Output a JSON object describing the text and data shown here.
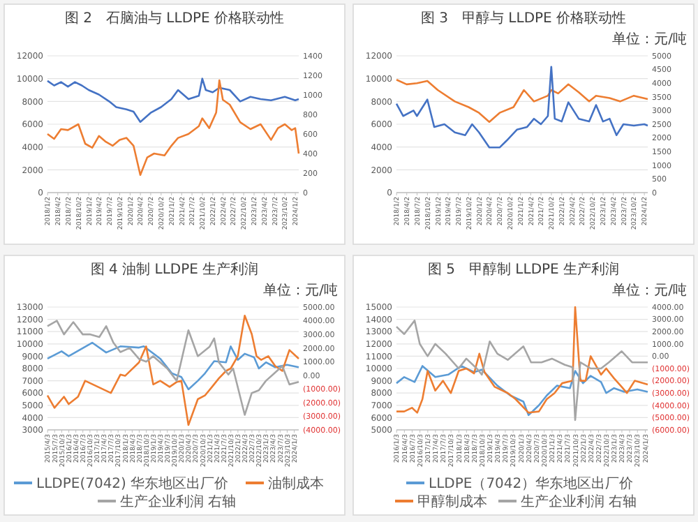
{
  "chart_data": [
    {
      "type": "line",
      "title": "图 2　石脑油与 LLDPE 价格联动性",
      "grid": "y",
      "legend": false,
      "xlim": [
        "2018-01-01",
        "2024-02-01"
      ],
      "xticks": [
        {
          "value": "2018-01-02",
          "label": "2018/1/2"
        },
        {
          "value": "2018-04-02",
          "label": "2018/4/2"
        },
        {
          "value": "2018-07-02",
          "label": "2018/7/2"
        },
        {
          "value": "2018-10-02",
          "label": "2018/10/2"
        },
        {
          "value": "2019-01-02",
          "label": "2019/1/2"
        },
        {
          "value": "2019-04-02",
          "label": "2019/4/2"
        },
        {
          "value": "2019-07-02",
          "label": "2019/7/2"
        },
        {
          "value": "2019-10-02",
          "label": "2019/10/2"
        },
        {
          "value": "2020-01-02",
          "label": "2020/1/2"
        },
        {
          "value": "2020-04-02",
          "label": "2020/4/2"
        },
        {
          "value": "2020-07-02",
          "label": "2020/7/2"
        },
        {
          "value": "2020-10-02",
          "label": "2020/10/2"
        },
        {
          "value": "2021-01-02",
          "label": "2021/1/2"
        },
        {
          "value": "2021-04-02",
          "label": "2021/4/2"
        },
        {
          "value": "2021-07-02",
          "label": "2021/7/2"
        },
        {
          "value": "2021-10-02",
          "label": "2021/10/2"
        },
        {
          "value": "2022-01-02",
          "label": "2022/1/2"
        },
        {
          "value": "2022-04-02",
          "label": "2022/4/2"
        },
        {
          "value": "2022-07-02",
          "label": "2022/7/2"
        },
        {
          "value": "2022-10-02",
          "label": "2022/10/2"
        },
        {
          "value": "2023-01-02",
          "label": "2023/1/2"
        },
        {
          "value": "2023-04-02",
          "label": "2023/4/2"
        },
        {
          "value": "2023-07-02",
          "label": "2023/7/2"
        },
        {
          "value": "2023-10-02",
          "label": "2023/10/2"
        },
        {
          "value": "2024-01-02",
          "label": "2024/1/2"
        }
      ],
      "ylim": [
        0,
        12000
      ],
      "yticks": [
        0,
        2000,
        4000,
        6000,
        8000,
        10000,
        12000
      ],
      "y2lim": [
        0,
        1400
      ],
      "y2ticks": [
        0,
        200,
        400,
        600,
        800,
        1000,
        1200,
        1400
      ],
      "series": [
        {
          "color": "#4472c4",
          "x": [
            "2018-01",
            "2018-03",
            "2018-05",
            "2018-07",
            "2018-09",
            "2018-11",
            "2019-01",
            "2019-04",
            "2019-07",
            "2019-09",
            "2019-12",
            "2020-02",
            "2020-04",
            "2020-07",
            "2020-10",
            "2021-01",
            "2021-03",
            "2021-06",
            "2021-09",
            "2021-10",
            "2021-11",
            "2022-01",
            "2022-03",
            "2022-06",
            "2022-09",
            "2022-12",
            "2023-03",
            "2023-06",
            "2023-10",
            "2024-01",
            "2024-02"
          ],
          "values": [
            9800,
            9400,
            9700,
            9300,
            9700,
            9400,
            9000,
            8600,
            8000,
            7500,
            7300,
            7100,
            6200,
            7000,
            7500,
            8200,
            9000,
            8200,
            8500,
            10000,
            9000,
            8800,
            9200,
            9000,
            8000,
            8400,
            8200,
            8100,
            8400,
            8100,
            8200
          ]
        },
        {
          "color": "#ed7d31",
          "axis": "y2",
          "x": [
            "2018-01",
            "2018-03",
            "2018-05",
            "2018-07",
            "2018-10",
            "2018-12",
            "2019-02",
            "2019-04",
            "2019-06",
            "2019-08",
            "2019-10",
            "2019-12",
            "2020-02",
            "2020-04",
            "2020-06",
            "2020-08",
            "2020-11",
            "2021-01",
            "2021-03",
            "2021-06",
            "2021-09",
            "2021-10",
            "2021-12",
            "2022-02",
            "2022-03",
            "2022-04",
            "2022-06",
            "2022-09",
            "2022-12",
            "2023-03",
            "2023-06",
            "2023-08",
            "2023-10",
            "2023-12",
            "2024-01",
            "2024-02"
          ],
          "values": [
            600,
            550,
            650,
            640,
            700,
            500,
            460,
            580,
            520,
            480,
            540,
            560,
            480,
            180,
            360,
            400,
            380,
            480,
            560,
            600,
            680,
            760,
            660,
            820,
            1150,
            950,
            900,
            720,
            650,
            700,
            540,
            660,
            700,
            640,
            660,
            400
          ]
        }
      ]
    },
    {
      "type": "line",
      "title": "图 3　甲醇与 LLDPE 价格联动性",
      "subtitle": "单位：元/吨",
      "grid": "y",
      "legend": false,
      "xlim": [
        "2018-01-01",
        "2024-02-01"
      ],
      "xticks": [
        {
          "value": "2018-01-02",
          "label": "2018/1/2"
        },
        {
          "value": "2018-04-02",
          "label": "2018/4/2"
        },
        {
          "value": "2018-07-02",
          "label": "2018/7/2"
        },
        {
          "value": "2018-10-02",
          "label": "2018/10/2"
        },
        {
          "value": "2019-01-02",
          "label": "2019/1/2"
        },
        {
          "value": "2019-04-02",
          "label": "2019/4/2"
        },
        {
          "value": "2019-07-02",
          "label": "2019/7/2"
        },
        {
          "value": "2019-10-02",
          "label": "2019/10/2"
        },
        {
          "value": "2020-01-02",
          "label": "2020/1/2"
        },
        {
          "value": "2020-04-02",
          "label": "2020/4/2"
        },
        {
          "value": "2020-07-02",
          "label": "2020/7/2"
        },
        {
          "value": "2020-10-02",
          "label": "2020/10/2"
        },
        {
          "value": "2021-01-02",
          "label": "2021/1/2"
        },
        {
          "value": "2021-04-02",
          "label": "2021/4/2"
        },
        {
          "value": "2021-07-02",
          "label": "2021/7/2"
        },
        {
          "value": "2021-10-02",
          "label": "2021/10/2"
        },
        {
          "value": "2022-01-02",
          "label": "2022/1/2"
        },
        {
          "value": "2022-04-02",
          "label": "2022/4/2"
        },
        {
          "value": "2022-07-02",
          "label": "2022/7/2"
        },
        {
          "value": "2022-10-02",
          "label": "2022/10/2"
        },
        {
          "value": "2023-01-02",
          "label": "2023/1/2"
        },
        {
          "value": "2023-04-02",
          "label": "2023/4/2"
        },
        {
          "value": "2023-07-02",
          "label": "2023/7/2"
        },
        {
          "value": "2023-10-02",
          "label": "2023/10/2"
        },
        {
          "value": "2024-01-02",
          "label": "2024/1/2"
        }
      ],
      "ylim": [
        0,
        12000
      ],
      "yticks": [
        0,
        2000,
        4000,
        6000,
        8000,
        10000,
        12000
      ],
      "y2lim": [
        0,
        5000
      ],
      "y2ticks": [
        0,
        500,
        1000,
        1500,
        2000,
        2500,
        3000,
        3500,
        4000,
        4500,
        5000
      ],
      "series": [
        {
          "color": "#ed7d31",
          "x": [
            "2018-01",
            "2018-04",
            "2018-07",
            "2018-10",
            "2019-01",
            "2019-06",
            "2019-10",
            "2020-01",
            "2020-04",
            "2020-07",
            "2020-11",
            "2021-02",
            "2021-05",
            "2021-09",
            "2021-10",
            "2021-12",
            "2022-03",
            "2022-06",
            "2022-09",
            "2022-11",
            "2023-03",
            "2023-06",
            "2023-10",
            "2024-02"
          ],
          "values": [
            9900,
            9500,
            9600,
            9800,
            9000,
            8000,
            7500,
            7000,
            6200,
            7000,
            7500,
            9000,
            8000,
            8500,
            9000,
            8700,
            9500,
            8800,
            8000,
            8500,
            8300,
            8000,
            8500,
            8200
          ]
        },
        {
          "color": "#4472c4",
          "axis": "y2",
          "x": [
            "2018-01",
            "2018-03",
            "2018-06",
            "2018-07",
            "2018-10",
            "2018-12",
            "2019-03",
            "2019-06",
            "2019-09",
            "2019-11",
            "2020-01",
            "2020-04",
            "2020-07",
            "2020-09",
            "2020-12",
            "2021-03",
            "2021-05",
            "2021-07",
            "2021-09",
            "2021-10",
            "2021-11",
            "2022-01",
            "2022-03",
            "2022-06",
            "2022-09",
            "2022-11",
            "2023-01",
            "2023-03",
            "2023-05",
            "2023-07",
            "2023-10",
            "2024-01",
            "2024-02"
          ],
          "values": [
            3250,
            2800,
            3000,
            2800,
            3400,
            2400,
            2500,
            2200,
            2100,
            2500,
            2200,
            1650,
            1650,
            1900,
            2300,
            2400,
            2700,
            2500,
            2800,
            4600,
            2700,
            2600,
            3300,
            2700,
            2600,
            3200,
            2600,
            2700,
            2100,
            2500,
            2450,
            2500,
            2450
          ]
        }
      ]
    },
    {
      "type": "line",
      "title": "图 4 油制 LLDPE 生产利润",
      "subtitle": "单位：元/吨",
      "grid": "y",
      "legend": "bottom",
      "xlim": [
        "2015-04-01",
        "2024-03-01"
      ],
      "xticks": [
        {
          "value": "2015-04-03",
          "label": "2015/4/3"
        },
        {
          "value": "2015-07-03",
          "label": "2015/7/3"
        },
        {
          "value": "2015-10-03",
          "label": "2015/10/3"
        },
        {
          "value": "2016-01-03",
          "label": "2016/1/3"
        },
        {
          "value": "2016-04-03",
          "label": "2016/4/3"
        },
        {
          "value": "2016-07-03",
          "label": "2016/7/3"
        },
        {
          "value": "2016-10-03",
          "label": "2016/10/3"
        },
        {
          "value": "2017-01-03",
          "label": "2017/1/3"
        },
        {
          "value": "2017-04-03",
          "label": "2017/4/3"
        },
        {
          "value": "2017-07-03",
          "label": "2017/7/3"
        },
        {
          "value": "2017-10-03",
          "label": "2017/10/3"
        },
        {
          "value": "2018-01-03",
          "label": "2018/1/3"
        },
        {
          "value": "2018-04-03",
          "label": "2018/4/3"
        },
        {
          "value": "2018-07-03",
          "label": "2018/7/3"
        },
        {
          "value": "2018-10-03",
          "label": "2018/10/3"
        },
        {
          "value": "2019-01-03",
          "label": "2019/1/3"
        },
        {
          "value": "2019-04-03",
          "label": "2019/4/3"
        },
        {
          "value": "2019-07-03",
          "label": "2019/7/3"
        },
        {
          "value": "2019-10-03",
          "label": "2019/10/3"
        },
        {
          "value": "2020-01-03",
          "label": "2020/1/3"
        },
        {
          "value": "2020-04-03",
          "label": "2020/4/3"
        },
        {
          "value": "2020-07-03",
          "label": "2020/7/3"
        },
        {
          "value": "2020-10-03",
          "label": "2020/10/3"
        },
        {
          "value": "2021-01-03",
          "label": "2021/1/3"
        },
        {
          "value": "2021-04-03",
          "label": "2021/4/3"
        },
        {
          "value": "2021-07-03",
          "label": "2021/7/3"
        },
        {
          "value": "2021-10-03",
          "label": "2021/10/3"
        },
        {
          "value": "2022-01-03",
          "label": "2022/1/3"
        },
        {
          "value": "2022-04-03",
          "label": "2022/4/3"
        },
        {
          "value": "2022-07-03",
          "label": "2022/7/3"
        },
        {
          "value": "2022-10-03",
          "label": "2022/10/3"
        },
        {
          "value": "2023-01-03",
          "label": "2023/1/3"
        },
        {
          "value": "2023-04-03",
          "label": "2023/4/3"
        },
        {
          "value": "2023-07-03",
          "label": "2023/7/3"
        },
        {
          "value": "2023-10-03",
          "label": "2023/10/3"
        },
        {
          "value": "2024-01-03",
          "label": "2024/1/3"
        }
      ],
      "ylim": [
        3000,
        13000
      ],
      "yticks": [
        3000,
        4000,
        5000,
        6000,
        7000,
        8000,
        9000,
        10000,
        11000,
        12000,
        13000
      ],
      "y2lim": [
        -4000,
        5000
      ],
      "y2ticks": [
        {
          "value": -4000,
          "label": "(4000.00)"
        },
        {
          "value": -3000,
          "label": "(3000.00)"
        },
        {
          "value": -2000,
          "label": "(2000.00)"
        },
        {
          "value": -1000,
          "label": "(1000.00)"
        },
        {
          "value": 0,
          "label": "0.00"
        },
        {
          "value": 1000,
          "label": "1000.00"
        },
        {
          "value": 2000,
          "label": "2000.00"
        },
        {
          "value": 3000,
          "label": "3000.00"
        },
        {
          "value": 4000,
          "label": "4000.00"
        },
        {
          "value": 5000,
          "label": "5000.00"
        }
      ],
      "series": [
        {
          "name": "LLDPE(7042) 华东地区出厂价",
          "color": "#5b9bd5",
          "x": [
            "2015-04",
            "2015-10",
            "2016-01",
            "2016-11",
            "2017-05",
            "2017-11",
            "2018-07",
            "2018-09",
            "2019-04",
            "2019-09",
            "2020-01",
            "2020-04",
            "2020-08",
            "2020-11",
            "2021-03",
            "2021-08",
            "2021-10",
            "2022-01",
            "2022-04",
            "2022-08",
            "2022-10",
            "2023-01",
            "2023-05",
            "2023-10",
            "2024-03"
          ],
          "values": [
            8800,
            9400,
            9000,
            10100,
            9300,
            9800,
            9700,
            9800,
            8800,
            7600,
            7300,
            6300,
            7000,
            7600,
            8600,
            8500,
            9800,
            8700,
            9200,
            8900,
            8000,
            8500,
            8100,
            8300,
            8100
          ]
        },
        {
          "name": "油制成本",
          "color": "#ed7d31",
          "x": [
            "2015-04",
            "2015-07",
            "2015-11",
            "2016-01",
            "2016-05",
            "2016-08",
            "2017-07",
            "2017-11",
            "2018-01",
            "2018-07",
            "2018-10",
            "2019-01",
            "2019-04",
            "2019-08",
            "2019-11",
            "2020-01",
            "2020-04",
            "2020-08",
            "2020-11",
            "2021-02",
            "2021-05",
            "2021-08",
            "2021-10",
            "2022-01",
            "2022-04",
            "2022-07",
            "2022-09",
            "2022-11",
            "2023-02",
            "2023-05",
            "2023-08",
            "2023-11",
            "2024-03"
          ],
          "values": [
            5800,
            4800,
            5700,
            5100,
            5700,
            7000,
            6000,
            7500,
            7400,
            8500,
            9800,
            6700,
            7000,
            6500,
            6900,
            7000,
            3400,
            5500,
            5800,
            6500,
            7200,
            7800,
            8000,
            9000,
            12300,
            10800,
            9000,
            8700,
            9000,
            8200,
            7800,
            9500,
            8800
          ]
        },
        {
          "name": "生产企业利润 右轴",
          "color": "#a5a5a5",
          "axis": "y2",
          "x": [
            "2015-04",
            "2015-08",
            "2015-11",
            "2016-03",
            "2016-07",
            "2016-10",
            "2017-02",
            "2017-05",
            "2017-08",
            "2017-11",
            "2018-03",
            "2018-07",
            "2018-10",
            "2019-01",
            "2019-07",
            "2019-11",
            "2020-04",
            "2020-08",
            "2021-01",
            "2021-03",
            "2021-05",
            "2021-09",
            "2021-11",
            "2022-04",
            "2022-07",
            "2022-10",
            "2023-01",
            "2023-04",
            "2023-08",
            "2023-11",
            "2024-03"
          ],
          "values": [
            3600,
            4000,
            3000,
            3900,
            3000,
            3000,
            2800,
            3600,
            2400,
            1700,
            2000,
            1200,
            1000,
            1400,
            500,
            -400,
            3300,
            1400,
            2100,
            2700,
            950,
            50,
            500,
            -2900,
            -1300,
            -1100,
            -400,
            50,
            680,
            -670,
            -490
          ]
        }
      ]
    },
    {
      "type": "line",
      "title": "图 5　甲醇制 LLDPE 生产利润",
      "subtitle": "单位：元/吨",
      "grid": "y",
      "legend": "bottom",
      "xlim": [
        "2016-01-01",
        "2024-02-01"
      ],
      "xticks": [
        {
          "value": "2016-01-03",
          "label": "2016/1/3"
        },
        {
          "value": "2016-04-03",
          "label": "2016/4/3"
        },
        {
          "value": "2016-07-03",
          "label": "2016/7/3"
        },
        {
          "value": "2016-10-03",
          "label": "2016/10/3"
        },
        {
          "value": "2017-01-03",
          "label": "2017/1/3"
        },
        {
          "value": "2017-04-03",
          "label": "2017/4/3"
        },
        {
          "value": "2017-07-03",
          "label": "2017/7/3"
        },
        {
          "value": "2017-10-03",
          "label": "2017/10/3"
        },
        {
          "value": "2018-01-03",
          "label": "2018/1/3"
        },
        {
          "value": "2018-04-03",
          "label": "2018/4/3"
        },
        {
          "value": "2018-07-03",
          "label": "2018/7/3"
        },
        {
          "value": "2018-10-03",
          "label": "2018/10/3"
        },
        {
          "value": "2019-01-03",
          "label": "2019/1/3"
        },
        {
          "value": "2019-04-03",
          "label": "2019/4/3"
        },
        {
          "value": "2019-07-03",
          "label": "2019/7/3"
        },
        {
          "value": "2019-10-03",
          "label": "2019/10/3"
        },
        {
          "value": "2020-01-03",
          "label": "2020/1/3"
        },
        {
          "value": "2020-04-03",
          "label": "2020/4/3"
        },
        {
          "value": "2020-07-03",
          "label": "2020/7/3"
        },
        {
          "value": "2020-10-03",
          "label": "2020/10/3"
        },
        {
          "value": "2021-01-03",
          "label": "2021/1/3"
        },
        {
          "value": "2021-04-03",
          "label": "2021/4/3"
        },
        {
          "value": "2021-07-03",
          "label": "2021/7/3"
        },
        {
          "value": "2021-10-03",
          "label": "2021/10/3"
        },
        {
          "value": "2022-01-03",
          "label": "2022/1/3"
        },
        {
          "value": "2022-04-03",
          "label": "2022/4/3"
        },
        {
          "value": "2022-07-03",
          "label": "2022/7/3"
        },
        {
          "value": "2022-10-03",
          "label": "2022/10/3"
        },
        {
          "value": "2023-01-03",
          "label": "2023/1/3"
        },
        {
          "value": "2023-04-03",
          "label": "2023/4/3"
        },
        {
          "value": "2023-07-03",
          "label": "2023/7/3"
        },
        {
          "value": "2023-10-03",
          "label": "2023/10/3"
        },
        {
          "value": "2024-01-03",
          "label": "2024/1/3"
        }
      ],
      "ylim": [
        5000,
        15000
      ],
      "yticks": [
        5000,
        6000,
        7000,
        8000,
        9000,
        10000,
        11000,
        12000,
        13000,
        14000,
        15000
      ],
      "y2lim": [
        -6000,
        4000
      ],
      "y2ticks": [
        {
          "value": -6000,
          "label": "(6000.00)"
        },
        {
          "value": -5000,
          "label": "(5000.00)"
        },
        {
          "value": -4000,
          "label": "(4000.00)"
        },
        {
          "value": -3000,
          "label": "(3000.00)"
        },
        {
          "value": -2000,
          "label": "(2000.00)"
        },
        {
          "value": -1000,
          "label": "(1000.00)"
        },
        {
          "value": 0,
          "label": "0.00"
        },
        {
          "value": 1000,
          "label": "1000.00"
        },
        {
          "value": 2000,
          "label": "2000.00"
        },
        {
          "value": 3000,
          "label": "3000.00"
        },
        {
          "value": 4000,
          "label": "4000.00"
        }
      ],
      "series": [
        {
          "name": "LLDPE（7042）华东地区出厂价",
          "color": "#5b9bd5",
          "x": [
            "2016-01",
            "2016-04",
            "2016-08",
            "2016-11",
            "2017-04",
            "2017-09",
            "2018-02",
            "2018-07",
            "2018-10",
            "2019-04",
            "2019-09",
            "2020-02",
            "2020-04",
            "2020-08",
            "2020-11",
            "2021-03",
            "2021-08",
            "2021-10",
            "2022-01",
            "2022-04",
            "2022-08",
            "2022-10",
            "2023-01",
            "2023-05",
            "2023-10",
            "2024-02"
          ],
          "values": [
            8800,
            9300,
            8900,
            10200,
            9300,
            9500,
            10200,
            9700,
            9900,
            8600,
            7800,
            7300,
            6200,
            7000,
            7800,
            8600,
            8400,
            9800,
            8800,
            9400,
            8900,
            8000,
            8400,
            8100,
            8300,
            8100
          ]
        },
        {
          "name": "甲醇制成本",
          "color": "#ed7d31",
          "x": [
            "2016-01",
            "2016-04",
            "2016-07",
            "2016-09",
            "2016-11",
            "2017-01",
            "2017-04",
            "2017-07",
            "2017-10",
            "2018-01",
            "2018-04",
            "2018-07",
            "2018-09",
            "2018-11",
            "2019-03",
            "2019-08",
            "2019-11",
            "2020-04",
            "2020-08",
            "2020-11",
            "2021-02",
            "2021-05",
            "2021-09",
            "2021-10",
            "2021-12",
            "2022-02",
            "2022-04",
            "2022-08",
            "2022-10",
            "2023-01",
            "2023-04",
            "2023-06",
            "2023-09",
            "2024-02"
          ],
          "values": [
            6500,
            6500,
            6800,
            6400,
            7500,
            9800,
            8200,
            9000,
            8000,
            9800,
            10000,
            9600,
            11200,
            9700,
            8500,
            8000,
            7500,
            6400,
            6500,
            7500,
            8000,
            8800,
            9000,
            15000,
            9000,
            9000,
            11000,
            9500,
            10000,
            9200,
            8500,
            8000,
            9000,
            8700
          ]
        },
        {
          "name": "生产企业利润 右轴",
          "color": "#a5a5a5",
          "axis": "y2",
          "x": [
            "2016-01",
            "2016-04",
            "2016-08",
            "2016-10",
            "2017-01",
            "2017-04",
            "2017-08",
            "2018-01",
            "2018-04",
            "2018-08",
            "2018-10",
            "2019-01",
            "2019-04",
            "2019-08",
            "2020-02",
            "2020-05",
            "2020-09",
            "2021-01",
            "2021-06",
            "2021-09",
            "2021-10",
            "2021-12",
            "2022-04",
            "2022-08",
            "2022-11",
            "2023-04",
            "2023-08",
            "2024-02"
          ],
          "values": [
            2400,
            1800,
            2900,
            1000,
            0,
            1000,
            200,
            -1000,
            -200,
            -1000,
            -1500,
            1200,
            200,
            -300,
            800,
            -500,
            -500,
            -200,
            -700,
            -900,
            -5200,
            -500,
            -1000,
            -1000,
            -500,
            400,
            -500,
            -500
          ]
        }
      ]
    }
  ]
}
